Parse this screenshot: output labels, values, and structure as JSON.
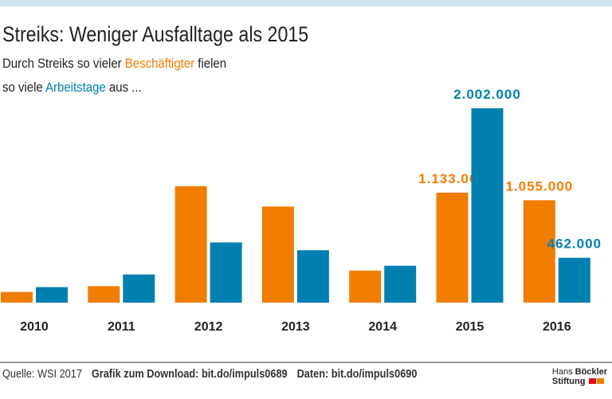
{
  "title": "Streiks: Weniger Ausfalltage als 2015",
  "subtitle": {
    "line1_pre": "Durch Streiks so vieler ",
    "line1_hl": "Beschäftigter",
    "line1_post": " fielen",
    "line2_pre": "so viele ",
    "line2_hl": "Arbeitstage",
    "line2_post": " aus ..."
  },
  "footer": {
    "source": "Quelle: WSI 2017",
    "download": "Grafik zum Download: bit.do/impuls0689",
    "data": "Daten: bit.do/impuls0690"
  },
  "logo": {
    "line1a": "Hans ",
    "line1b": "Böckler",
    "line2": "Stiftung"
  },
  "chart_data": {
    "type": "bar",
    "categories": [
      "2010",
      "2011",
      "2012",
      "2013",
      "2014",
      "2015",
      "2016"
    ],
    "series": [
      {
        "name": "Beschäftigter",
        "color": "#f07d00",
        "values": [
          110000,
          170000,
          1200000,
          990000,
          330000,
          1133000,
          1055000
        ],
        "labels": [
          "",
          "",
          "",
          "",
          "",
          "1.133.000",
          "1.055.000"
        ]
      },
      {
        "name": "Arbeitstage",
        "color": "#0080b0",
        "values": [
          160000,
          290000,
          620000,
          540000,
          380000,
          2002000,
          462000
        ],
        "labels": [
          "",
          "",
          "",
          "",
          "",
          "2.002.000",
          "462.000"
        ]
      }
    ],
    "ylim": [
      0,
      2002000
    ],
    "grid": false
  }
}
